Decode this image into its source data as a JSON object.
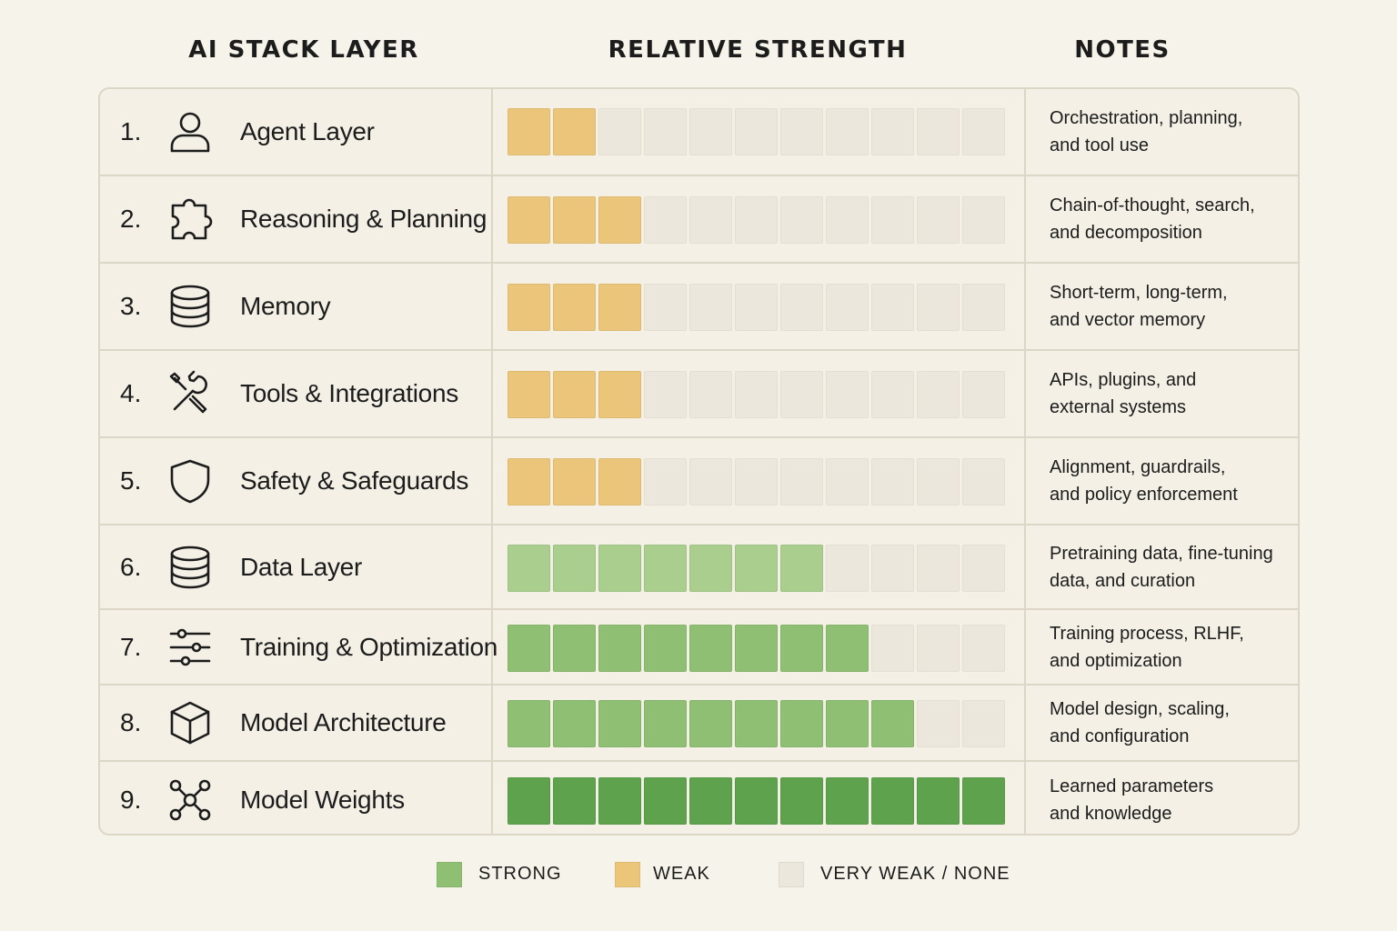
{
  "headers": {
    "layer": "AI STACK LAYER",
    "strength": "RELATIVE STRENGTH",
    "notes": "NOTES"
  },
  "colors": {
    "strong_dark": "#5ea24e",
    "strong_mid": "#8fbf72",
    "strong_light": "#a9ce8e",
    "weak": "#ebc67a",
    "none": "#ece7dc"
  },
  "legend": [
    {
      "label": "STRONG",
      "color": "#8fbf72"
    },
    {
      "label": "WEAK",
      "color": "#ebc67a"
    },
    {
      "label": "VERY WEAK / NONE",
      "color": "#ece7dc"
    }
  ],
  "chart_data": {
    "type": "table",
    "max_blocks": 11,
    "rows": [
      {
        "number": "1.",
        "icon": "user-icon",
        "label": "Agent Layer",
        "strength": 2,
        "rating": "weak",
        "color": "#ebc67a",
        "note": [
          "Orchestration, planning,",
          "and tool use"
        ]
      },
      {
        "number": "2.",
        "icon": "puzzle-icon",
        "label": "Reasoning & Planning",
        "strength": 3,
        "rating": "weak",
        "color": "#ebc67a",
        "note": [
          "Chain-of-thought, search,",
          "and decomposition"
        ]
      },
      {
        "number": "3.",
        "icon": "database-icon",
        "label": "Memory",
        "strength": 3,
        "rating": "weak",
        "color": "#ebc67a",
        "note": [
          "Short-term, long-term,",
          "and vector memory"
        ]
      },
      {
        "number": "4.",
        "icon": "tools-icon",
        "label": "Tools & Integrations",
        "strength": 3,
        "rating": "weak",
        "color": "#ebc67a",
        "note": [
          "APIs, plugins, and",
          "external systems"
        ]
      },
      {
        "number": "5.",
        "icon": "shield-icon",
        "label": "Safety & Safeguards",
        "strength": 3,
        "rating": "weak",
        "color": "#ebc67a",
        "note": [
          "Alignment, guardrails,",
          "and policy enforcement"
        ]
      },
      {
        "number": "6.",
        "icon": "database-icon",
        "label": "Data Layer",
        "strength": 7,
        "rating": "strong",
        "color": "#a9ce8e",
        "note": [
          "Pretraining data, fine-tuning",
          "data, and curation"
        ]
      },
      {
        "number": "7.",
        "icon": "sliders-icon",
        "label": "Training & Optimization",
        "strength": 8,
        "rating": "strong",
        "color": "#8fbf72",
        "note": [
          "Training process, RLHF,",
          "and optimization"
        ]
      },
      {
        "number": "8.",
        "icon": "cube-icon",
        "label": "Model Architecture",
        "strength": 9,
        "rating": "strong",
        "color": "#8fbf72",
        "note": [
          "Model design, scaling,",
          "and configuration"
        ]
      },
      {
        "number": "9.",
        "icon": "network-icon",
        "label": "Model Weights",
        "strength": 11,
        "rating": "strong",
        "color": "#5ea24e",
        "note": [
          "Learned parameters",
          "and knowledge"
        ]
      }
    ]
  }
}
